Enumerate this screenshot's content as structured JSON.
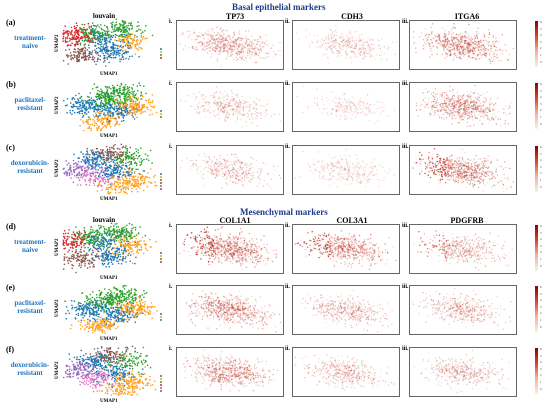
{
  "figure": {
    "sections": [
      {
        "title": "Basal epithelial markers",
        "louvain_header": "louvain",
        "marker_headers": [
          "TP73",
          "CDH3",
          "ITGA6"
        ],
        "rows": [
          {
            "letter": "(a)",
            "condition": [
              "treatment-",
              "naive"
            ]
          },
          {
            "letter": "(b)",
            "condition": [
              "paclitaxel-",
              "resistant"
            ]
          },
          {
            "letter": "(c)",
            "condition": [
              "doxorubicin-",
              "resistant"
            ]
          }
        ]
      },
      {
        "title": "Mesenchymal markers",
        "louvain_header": "louvain",
        "marker_headers": [
          "COL1A1",
          "COL3A1",
          "PDGFRB"
        ],
        "rows": [
          {
            "letter": "(d)",
            "condition": [
              "treatment-",
              "naive"
            ]
          },
          {
            "letter": "(e)",
            "condition": [
              "paclitaxel-",
              "resistant"
            ]
          },
          {
            "letter": "(f)",
            "condition": [
              "doxorubicin-",
              "resistant"
            ]
          }
        ]
      }
    ],
    "panel_numerals": [
      "i.",
      "ii.",
      "iii."
    ],
    "axis_x": "UMAP1",
    "axis_y": "UMAP2",
    "colorbar_ticks": [
      "6",
      "5",
      "4",
      "3",
      "2",
      "1",
      "0"
    ],
    "cluster_colors": [
      "#1f77b4",
      "#ff9f1c",
      "#2ca02c",
      "#d62728",
      "#9467bd",
      "#8c564b",
      "#e377c2"
    ],
    "expression_color": "#c0392b"
  }
}
